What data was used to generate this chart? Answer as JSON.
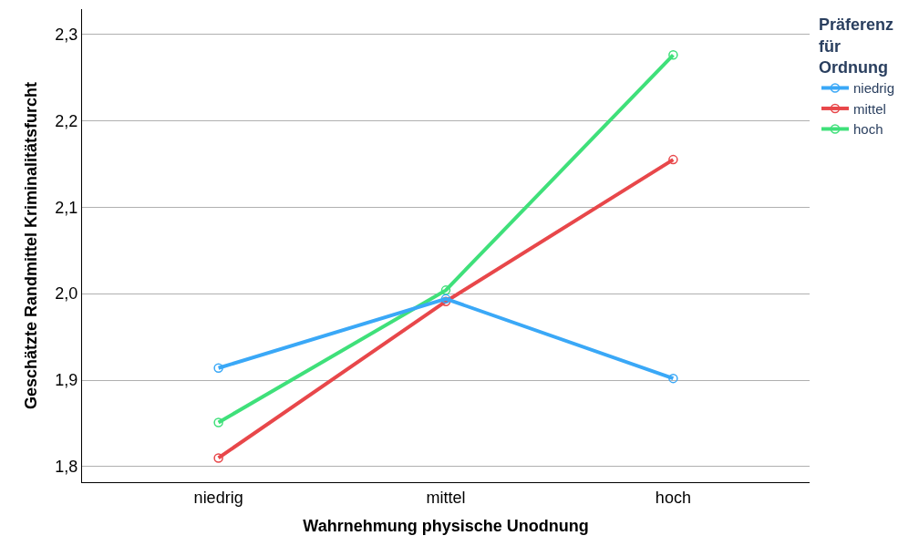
{
  "chart_data": {
    "type": "line",
    "xlabel": "Wahrnehmung physische Unodnung",
    "ylabel": "Geschätzte Randmittel Kriminalitätsfurcht",
    "legend_title": "Präferenz\nfür\nOrdnung",
    "categories": [
      "niedrig",
      "mittel",
      "hoch"
    ],
    "series": [
      {
        "name": "niedrig",
        "color": "#3aa8f7",
        "values": [
          1.914,
          1.994,
          1.902
        ]
      },
      {
        "name": "mittel",
        "color": "#e8474a",
        "values": [
          1.81,
          1.991,
          2.155
        ]
      },
      {
        "name": "hoch",
        "color": "#3fe07a",
        "values": [
          1.851,
          2.004,
          2.276
        ]
      }
    ],
    "ylim": [
      1.782,
      2.329
    ],
    "yticks": [
      {
        "value": 1.8,
        "label": "1,8"
      },
      {
        "value": 1.9,
        "label": "1,9"
      },
      {
        "value": 2.0,
        "label": "2,0"
      },
      {
        "value": 2.1,
        "label": "2,1"
      },
      {
        "value": 2.2,
        "label": "2,2"
      },
      {
        "value": 2.3,
        "label": "2,3"
      }
    ],
    "grid": "y",
    "legend": "top right",
    "marker": "circle",
    "line_style": "solid"
  }
}
